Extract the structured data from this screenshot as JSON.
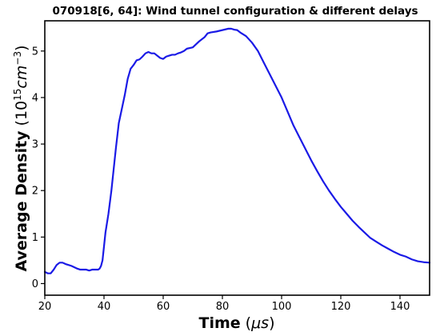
{
  "chart_data": {
    "type": "line",
    "title": "070918[6, 64]: Wind tunnel configuration & different delays",
    "xlabel": {
      "main": "Time",
      "unit_open": "(",
      "unit_mu": "μ",
      "unit_rest": "s",
      "unit_close": ")"
    },
    "ylabel": {
      "main": "Average Density",
      "unit_open": "(10",
      "unit_exp1": "15",
      "unit_mid": "cm",
      "unit_exp2": "−3",
      "unit_close": ")"
    },
    "xlim": [
      20,
      150
    ],
    "ylim": [
      -0.25,
      5.65
    ],
    "xticks": [
      20,
      40,
      60,
      80,
      100,
      120,
      140
    ],
    "yticks": [
      0,
      1,
      2,
      3,
      4,
      5
    ],
    "grid": false,
    "line_color": "#1a1ae6",
    "series": [
      {
        "x": [
          20,
          21,
          22,
          23,
          24,
          25,
          26,
          27,
          28,
          29,
          30,
          31,
          32,
          33,
          34,
          35,
          36,
          37,
          38,
          38.5,
          39,
          39.5,
          40,
          40.5,
          41,
          41.5,
          42,
          42.5,
          43,
          44,
          45,
          46,
          47,
          48,
          49,
          50,
          51,
          52,
          53,
          54,
          55,
          56,
          57,
          58,
          59,
          60,
          61,
          62,
          63,
          64,
          65,
          66,
          67,
          68,
          70,
          72,
          74,
          75,
          76,
          78,
          80,
          82,
          83,
          84,
          85,
          86,
          88,
          90,
          92,
          94,
          96,
          98,
          100,
          102,
          104,
          106,
          108,
          110,
          112,
          114,
          116,
          118,
          120,
          122,
          124,
          126,
          128,
          130,
          132,
          134,
          136,
          138,
          140,
          142,
          144,
          146,
          148,
          150
        ],
        "y": [
          0.25,
          0.22,
          0.22,
          0.3,
          0.4,
          0.45,
          0.45,
          0.42,
          0.4,
          0.38,
          0.35,
          0.32,
          0.3,
          0.3,
          0.3,
          0.28,
          0.3,
          0.3,
          0.3,
          0.32,
          0.38,
          0.5,
          0.8,
          1.1,
          1.3,
          1.5,
          1.75,
          2.0,
          2.3,
          2.9,
          3.45,
          3.75,
          4.05,
          4.4,
          4.62,
          4.7,
          4.8,
          4.82,
          4.88,
          4.95,
          4.98,
          4.95,
          4.95,
          4.9,
          4.85,
          4.83,
          4.88,
          4.9,
          4.92,
          4.92,
          4.95,
          4.97,
          5.0,
          5.05,
          5.08,
          5.2,
          5.3,
          5.38,
          5.4,
          5.42,
          5.45,
          5.48,
          5.48,
          5.46,
          5.45,
          5.4,
          5.32,
          5.18,
          5.0,
          4.75,
          4.5,
          4.25,
          4.0,
          3.7,
          3.4,
          3.15,
          2.9,
          2.65,
          2.42,
          2.2,
          2.0,
          1.82,
          1.65,
          1.5,
          1.35,
          1.22,
          1.1,
          0.98,
          0.9,
          0.82,
          0.75,
          0.68,
          0.62,
          0.58,
          0.52,
          0.48,
          0.46,
          0.45
        ]
      }
    ]
  }
}
